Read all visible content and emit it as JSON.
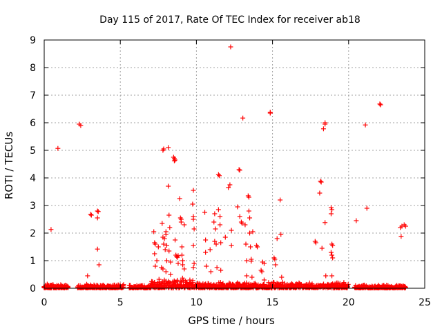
{
  "chart_data": {
    "type": "scatter",
    "title": "Day 115 of 2017, Rate Of TEC Index for receiver ab18",
    "xlabel": "GPS time / hours",
    "ylabel": "ROTI / TECUs",
    "xlim": [
      0,
      25
    ],
    "ylim": [
      0,
      9
    ],
    "xticks": [
      0,
      5,
      10,
      15,
      20,
      25
    ],
    "yticks": [
      0,
      1,
      2,
      3,
      4,
      5,
      6,
      7,
      8,
      9
    ],
    "grid": true,
    "marker": "+",
    "color": "#ff0000",
    "baseline_band": {
      "description": "dense low-value ROTI observations",
      "ranges": [
        {
          "x_start": 0.0,
          "x_end": 1.6,
          "y_max": 0.15
        },
        {
          "x_start": 2.2,
          "x_end": 5.2,
          "y_max": 0.15
        },
        {
          "x_start": 5.6,
          "x_end": 7.0,
          "y_max": 0.12
        },
        {
          "x_start": 7.0,
          "x_end": 10.0,
          "y_max": 0.4
        },
        {
          "x_start": 10.0,
          "x_end": 20.0,
          "y_max": 0.22
        },
        {
          "x_start": 20.4,
          "x_end": 23.8,
          "y_max": 0.12
        }
      ]
    },
    "series": [
      {
        "name": "ROTI",
        "points": [
          [
            0.45,
            2.13
          ],
          [
            0.9,
            5.07
          ],
          [
            2.3,
            5.95
          ],
          [
            2.4,
            5.9
          ],
          [
            2.85,
            0.45
          ],
          [
            3.1,
            2.65
          ],
          [
            3.05,
            2.68
          ],
          [
            3.5,
            2.8
          ],
          [
            3.55,
            2.78
          ],
          [
            3.5,
            2.55
          ],
          [
            3.5,
            1.42
          ],
          [
            3.6,
            0.85
          ],
          [
            7.2,
            2.05
          ],
          [
            7.25,
            1.65
          ],
          [
            7.3,
            1.6
          ],
          [
            7.25,
            1.25
          ],
          [
            7.3,
            0.8
          ],
          [
            7.4,
            1.0
          ],
          [
            7.5,
            1.5
          ],
          [
            7.8,
            5.0
          ],
          [
            7.85,
            5.05
          ],
          [
            7.75,
            2.35
          ],
          [
            7.8,
            1.85
          ],
          [
            7.9,
            1.8
          ],
          [
            7.85,
            1.6
          ],
          [
            7.95,
            1.4
          ],
          [
            7.7,
            0.75
          ],
          [
            7.8,
            0.7
          ],
          [
            8.0,
            2.05
          ],
          [
            8.0,
            1.95
          ],
          [
            8.05,
            1.55
          ],
          [
            8.05,
            1.0
          ],
          [
            8.0,
            0.6
          ],
          [
            8.15,
            5.1
          ],
          [
            8.15,
            3.7
          ],
          [
            8.2,
            2.65
          ],
          [
            8.25,
            2.2
          ],
          [
            8.2,
            1.35
          ],
          [
            8.3,
            0.95
          ],
          [
            8.3,
            0.5
          ],
          [
            8.5,
            4.75
          ],
          [
            8.55,
            4.7
          ],
          [
            8.55,
            4.62
          ],
          [
            8.6,
            4.65
          ],
          [
            8.6,
            1.75
          ],
          [
            8.65,
            1.2
          ],
          [
            8.7,
            1.15
          ],
          [
            8.75,
            1.12
          ],
          [
            8.8,
            1.18
          ],
          [
            8.8,
            0.9
          ],
          [
            8.9,
            3.25
          ],
          [
            8.95,
            2.55
          ],
          [
            9.0,
            2.5
          ],
          [
            9.0,
            2.4
          ],
          [
            9.05,
            1.5
          ],
          [
            9.05,
            1.2
          ],
          [
            9.1,
            1.0
          ],
          [
            9.1,
            0.85
          ],
          [
            9.2,
            0.7
          ],
          [
            9.2,
            2.3
          ],
          [
            9.8,
            3.55
          ],
          [
            9.75,
            3.05
          ],
          [
            9.8,
            2.6
          ],
          [
            9.8,
            2.5
          ],
          [
            9.85,
            2.15
          ],
          [
            9.8,
            1.55
          ],
          [
            9.85,
            0.9
          ],
          [
            9.8,
            0.75
          ],
          [
            10.55,
            2.75
          ],
          [
            10.6,
            1.75
          ],
          [
            10.6,
            1.3
          ],
          [
            10.65,
            0.8
          ],
          [
            10.9,
            1.4
          ],
          [
            10.95,
            0.6
          ],
          [
            11.2,
            2.7
          ],
          [
            11.15,
            2.4
          ],
          [
            11.25,
            2.15
          ],
          [
            11.2,
            1.7
          ],
          [
            11.3,
            1.6
          ],
          [
            11.35,
            0.75
          ],
          [
            11.45,
            4.12
          ],
          [
            11.5,
            4.08
          ],
          [
            11.45,
            2.85
          ],
          [
            11.55,
            2.6
          ],
          [
            11.55,
            2.3
          ],
          [
            11.6,
            1.65
          ],
          [
            11.6,
            0.65
          ],
          [
            11.9,
            1.85
          ],
          [
            12.1,
            3.65
          ],
          [
            12.2,
            3.75
          ],
          [
            12.25,
            8.75
          ],
          [
            12.3,
            2.1
          ],
          [
            12.3,
            1.55
          ],
          [
            12.7,
            2.95
          ],
          [
            12.8,
            4.3
          ],
          [
            12.85,
            4.28
          ],
          [
            12.85,
            2.6
          ],
          [
            12.95,
            2.4
          ],
          [
            13.0,
            2.35
          ],
          [
            13.05,
            6.17
          ],
          [
            13.2,
            2.3
          ],
          [
            13.25,
            1.6
          ],
          [
            13.3,
            1.0
          ],
          [
            13.3,
            0.45
          ],
          [
            13.4,
            3.35
          ],
          [
            13.45,
            3.3
          ],
          [
            13.45,
            2.8
          ],
          [
            13.5,
            2.55
          ],
          [
            13.5,
            2.0
          ],
          [
            13.55,
            1.5
          ],
          [
            13.6,
            1.05
          ],
          [
            13.6,
            0.98
          ],
          [
            13.65,
            0.4
          ],
          [
            13.7,
            2.05
          ],
          [
            13.95,
            1.55
          ],
          [
            14.0,
            1.5
          ],
          [
            14.25,
            0.65
          ],
          [
            14.3,
            0.6
          ],
          [
            14.35,
            0.95
          ],
          [
            14.45,
            0.9
          ],
          [
            14.45,
            0.3
          ],
          [
            14.85,
            6.35
          ],
          [
            14.85,
            6.38
          ],
          [
            15.1,
            1.1
          ],
          [
            15.15,
            1.05
          ],
          [
            15.2,
            0.85
          ],
          [
            15.3,
            1.8
          ],
          [
            15.5,
            3.2
          ],
          [
            15.55,
            1.95
          ],
          [
            15.6,
            0.4
          ],
          [
            17.8,
            1.7
          ],
          [
            17.85,
            1.65
          ],
          [
            18.1,
            3.45
          ],
          [
            18.15,
            3.88
          ],
          [
            18.2,
            3.85
          ],
          [
            18.25,
            1.45
          ],
          [
            18.35,
            5.78
          ],
          [
            18.45,
            6.0
          ],
          [
            18.45,
            5.95
          ],
          [
            18.45,
            2.38
          ],
          [
            18.5,
            0.45
          ],
          [
            18.85,
            2.92
          ],
          [
            18.9,
            2.85
          ],
          [
            18.85,
            2.7
          ],
          [
            18.9,
            1.6
          ],
          [
            18.95,
            1.55
          ],
          [
            18.85,
            1.3
          ],
          [
            18.9,
            1.2
          ],
          [
            18.95,
            1.1
          ],
          [
            18.9,
            0.45
          ],
          [
            20.5,
            2.45
          ],
          [
            21.1,
            5.92
          ],
          [
            21.2,
            2.9
          ],
          [
            22.05,
            6.68
          ],
          [
            22.1,
            6.65
          ],
          [
            23.4,
            2.2
          ],
          [
            23.45,
            1.88
          ],
          [
            23.5,
            2.25
          ],
          [
            23.65,
            2.3
          ],
          [
            23.75,
            2.25
          ]
        ]
      }
    ]
  }
}
